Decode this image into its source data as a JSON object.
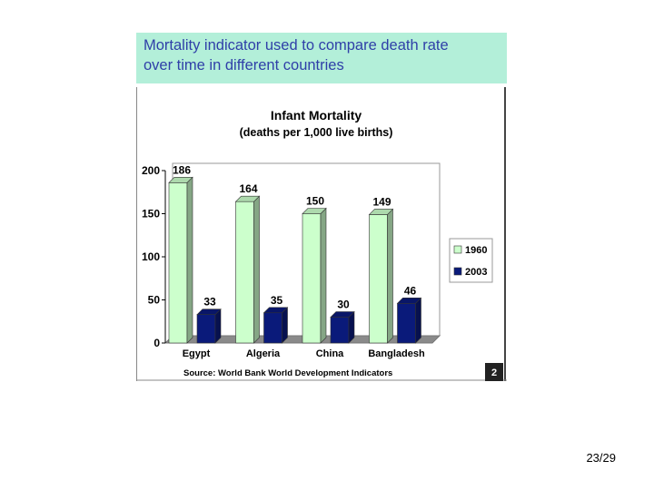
{
  "slide": {
    "caption_lines": [
      "Mortality indicator used to compare death rate",
      "over time in different countries"
    ],
    "page_number": "23/29"
  },
  "chart_data": {
    "type": "bar",
    "title": "Infant Mortality",
    "subtitle": "(deaths per 1,000 live births)",
    "categories": [
      "Egypt",
      "Algeria",
      "China",
      "Bangladesh"
    ],
    "series": [
      {
        "name": "1960",
        "values": [
          186,
          164,
          150,
          149
        ],
        "color": "#ccffcc"
      },
      {
        "name": "2003",
        "values": [
          33,
          35,
          30,
          46
        ],
        "color": "#0a1a7a"
      }
    ],
    "y_ticks": [
      0,
      50,
      100,
      150,
      200
    ],
    "ylim": [
      0,
      200
    ],
    "grid": false,
    "legend": "right",
    "source": "Source: World Bank World Development Indicators",
    "slide_badge": "2"
  }
}
